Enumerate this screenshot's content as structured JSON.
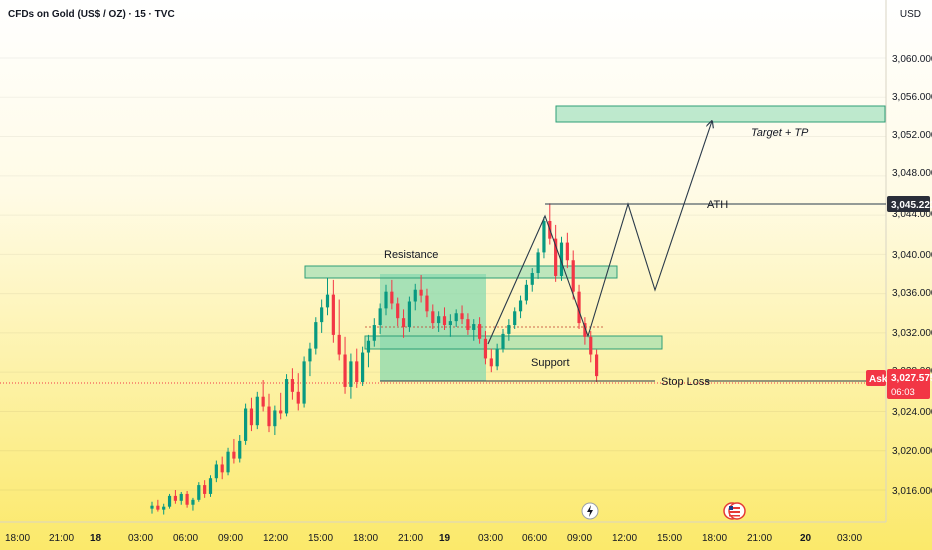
{
  "header": {
    "title": "CFDs on Gold (US$ / OZ) · 15 · TVC",
    "currency": "USD"
  },
  "colors": {
    "up": "#089981",
    "down": "#f23645",
    "zone_fill": "#89d9b0",
    "zone_stroke": "#2e9e77",
    "line": "#2a3a4a",
    "price_line": "#f23645",
    "ath_tag_bg": "#2a2e39",
    "ask_tag_bg": "#f23645",
    "bg_top": "#ffffff",
    "bg_bottom": "#fbe96a"
  },
  "price_axis": {
    "labels": [
      "3,060.000",
      "3,056.000",
      "3,052.000",
      "3,048.000",
      "3,044.000",
      "3,040.000",
      "3,036.000",
      "3,032.000",
      "3,028.000",
      "3,024.000",
      "3,020.000",
      "3,016.000"
    ],
    "ath_tag": "3,045.223",
    "ask_label": "Ask",
    "ask_price": "3,027.575",
    "countdown": "06:03"
  },
  "time_axis": {
    "labels": [
      "18:00",
      "21:00",
      "18",
      "03:00",
      "06:00",
      "09:00",
      "12:00",
      "15:00",
      "18:00",
      "21:00",
      "19",
      "03:00",
      "06:00",
      "09:00",
      "12:00",
      "15:00",
      "18:00",
      "21:00",
      "20",
      "03:00"
    ]
  },
  "annotations": {
    "resistance": "Resistance",
    "support": "Support",
    "ath": "ATH",
    "target": "Target + TP",
    "stop_loss": "Stop Loss"
  },
  "chart_data": {
    "type": "candlestick",
    "ylim": [
      3013,
      3063
    ],
    "ath": 3045.223,
    "current_price": 3027.575,
    "zones": {
      "resistance": [
        3038.2,
        3039.3
      ],
      "support": [
        3031.4,
        3032.6
      ],
      "target": [
        3053.5,
        3055.0
      ]
    },
    "candles": [
      [
        3014.1,
        3014.8,
        3013.6,
        3014.4
      ],
      [
        3014.4,
        3015.0,
        3013.8,
        3014.0
      ],
      [
        3014.0,
        3014.6,
        3013.5,
        3014.3
      ],
      [
        3014.3,
        3015.6,
        3014.1,
        3015.4
      ],
      [
        3015.4,
        3016.0,
        3014.6,
        3014.9
      ],
      [
        3014.9,
        3015.8,
        3014.5,
        3015.6
      ],
      [
        3015.6,
        3015.9,
        3014.2,
        3014.5
      ],
      [
        3014.5,
        3015.2,
        3013.9,
        3015.0
      ],
      [
        3015.0,
        3016.8,
        3014.8,
        3016.5
      ],
      [
        3016.5,
        3017.0,
        3015.2,
        3015.6
      ],
      [
        3015.6,
        3017.5,
        3015.3,
        3017.2
      ],
      [
        3017.2,
        3019.0,
        3016.8,
        3018.6
      ],
      [
        3018.6,
        3019.4,
        3017.1,
        3017.8
      ],
      [
        3017.8,
        3020.3,
        3017.5,
        3019.9
      ],
      [
        3019.9,
        3021.2,
        3018.7,
        3019.2
      ],
      [
        3019.2,
        3021.6,
        3018.8,
        3021.0
      ],
      [
        3021.0,
        3024.8,
        3020.6,
        3024.3
      ],
      [
        3024.3,
        3025.4,
        3022.0,
        3022.6
      ],
      [
        3022.6,
        3026.0,
        3022.2,
        3025.5
      ],
      [
        3025.5,
        3027.2,
        3024.0,
        3024.5
      ],
      [
        3024.5,
        3025.8,
        3021.9,
        3022.5
      ],
      [
        3022.5,
        3024.6,
        3021.6,
        3024.1
      ],
      [
        3024.1,
        3025.9,
        3023.2,
        3023.8
      ],
      [
        3023.8,
        3027.8,
        3023.5,
        3027.3
      ],
      [
        3027.3,
        3028.4,
        3025.2,
        3026.0
      ],
      [
        3026.0,
        3027.9,
        3024.1,
        3024.8
      ],
      [
        3024.8,
        3029.6,
        3024.4,
        3029.1
      ],
      [
        3029.1,
        3031.0,
        3027.6,
        3030.4
      ],
      [
        3030.4,
        3033.6,
        3029.8,
        3033.1
      ],
      [
        3033.1,
        3035.4,
        3032.0,
        3034.6
      ],
      [
        3034.6,
        3037.6,
        3033.8,
        3035.9
      ],
      [
        3035.9,
        3037.4,
        3031.0,
        3031.8
      ],
      [
        3031.8,
        3035.4,
        3029.2,
        3029.8
      ],
      [
        3029.8,
        3031.6,
        3025.8,
        3026.5
      ],
      [
        3026.5,
        3029.9,
        3025.3,
        3029.1
      ],
      [
        3029.1,
        3030.4,
        3026.4,
        3027.0
      ],
      [
        3027.0,
        3030.6,
        3026.6,
        3030.0
      ],
      [
        3030.0,
        3031.8,
        3028.5,
        3031.2
      ],
      [
        3031.2,
        3033.5,
        3030.6,
        3032.8
      ],
      [
        3032.8,
        3035.0,
        3031.9,
        3034.5
      ],
      [
        3034.5,
        3036.9,
        3033.8,
        3036.2
      ],
      [
        3036.2,
        3037.4,
        3034.4,
        3035.0
      ],
      [
        3035.0,
        3035.6,
        3032.7,
        3033.5
      ],
      [
        3033.5,
        3034.4,
        3031.5,
        3032.6
      ],
      [
        3032.6,
        3035.7,
        3032.1,
        3035.2
      ],
      [
        3035.2,
        3037.0,
        3034.3,
        3036.4
      ],
      [
        3036.4,
        3037.9,
        3035.1,
        3035.8
      ],
      [
        3035.8,
        3036.5,
        3033.6,
        3034.2
      ],
      [
        3034.2,
        3034.9,
        3032.4,
        3033.0
      ],
      [
        3033.0,
        3034.2,
        3032.1,
        3033.7
      ],
      [
        3033.7,
        3034.6,
        3032.3,
        3032.8
      ],
      [
        3032.8,
        3033.9,
        3031.6,
        3033.2
      ],
      [
        3033.2,
        3034.4,
        3032.6,
        3034.0
      ],
      [
        3034.0,
        3034.8,
        3032.9,
        3033.4
      ],
      [
        3033.4,
        3034.0,
        3031.8,
        3032.3
      ],
      [
        3032.3,
        3033.4,
        3031.2,
        3032.9
      ],
      [
        3032.9,
        3033.6,
        3030.9,
        3031.4
      ],
      [
        3031.4,
        3032.2,
        3028.8,
        3029.4
      ],
      [
        3029.4,
        3030.4,
        3028.0,
        3028.6
      ],
      [
        3028.6,
        3030.9,
        3028.2,
        3030.4
      ],
      [
        3030.4,
        3032.4,
        3030.0,
        3031.9
      ],
      [
        3031.9,
        3033.4,
        3031.2,
        3032.8
      ],
      [
        3032.8,
        3034.6,
        3032.4,
        3034.2
      ],
      [
        3034.2,
        3035.8,
        3033.5,
        3035.3
      ],
      [
        3035.3,
        3037.4,
        3034.9,
        3036.9
      ],
      [
        3036.9,
        3038.6,
        3036.2,
        3038.1
      ],
      [
        3038.1,
        3040.6,
        3037.5,
        3040.2
      ],
      [
        3040.2,
        3043.8,
        3039.6,
        3043.4
      ],
      [
        3043.4,
        3045.2,
        3041.0,
        3041.6
      ],
      [
        3041.6,
        3043.0,
        3037.2,
        3037.8
      ],
      [
        3037.8,
        3041.8,
        3037.3,
        3041.2
      ],
      [
        3041.2,
        3042.2,
        3038.6,
        3039.4
      ],
      [
        3039.4,
        3040.4,
        3035.4,
        3036.2
      ],
      [
        3036.2,
        3036.9,
        3032.4,
        3033.0
      ],
      [
        3033.0,
        3033.6,
        3030.8,
        3031.6
      ],
      [
        3031.6,
        3032.2,
        3029.0,
        3029.8
      ],
      [
        3029.8,
        3030.3,
        3027.0,
        3027.6
      ]
    ]
  }
}
